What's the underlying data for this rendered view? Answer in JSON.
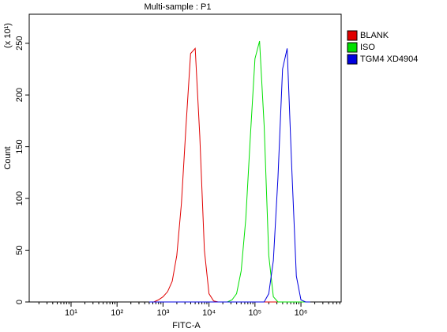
{
  "chart_data": {
    "type": "line",
    "title": "Multi-sample : P1",
    "x_label": "FITC-A",
    "y_label": "Count",
    "y_multiplier": "(x 10¹)",
    "x_scale": "log",
    "xlim": [
      1.23,
      7500000
    ],
    "xticks": [
      {
        "value": 10,
        "label": "10¹"
      },
      {
        "value": 100,
        "label": "10²"
      },
      {
        "value": 1000,
        "label": "10³"
      },
      {
        "value": 10000,
        "label": "10⁴"
      },
      {
        "value": 100000,
        "label": "10⁵"
      },
      {
        "value": 1000000,
        "label": "10⁶"
      }
    ],
    "ylim": [
      0,
      278
    ],
    "yticks": [
      0,
      50,
      100,
      150,
      200,
      250
    ],
    "legend": "outside-right",
    "x": [
      501,
      631,
      794,
      1000,
      1259,
      1585,
      1995,
      2512,
      3162,
      3981,
      5012,
      6310,
      7943,
      10000,
      12589,
      15849,
      19953,
      25119,
      31623,
      39811,
      50119,
      63096,
      79433,
      100000,
      125893,
      158489,
      199526,
      251189,
      316228,
      398107,
      501187,
      630957,
      794328,
      1000000,
      1258925,
      1584893
    ],
    "series": [
      {
        "name": "BLANK",
        "color": "#e00000",
        "values": [
          0,
          0,
          2,
          5,
          10,
          20,
          45,
          95,
          170,
          240,
          245,
          160,
          50,
          8,
          1,
          0,
          0,
          0,
          0,
          0,
          0,
          0,
          0,
          0,
          0,
          0,
          0,
          0,
          0,
          0,
          0,
          0,
          0,
          0,
          0,
          0
        ]
      },
      {
        "name": "ISO",
        "color": "#00e000",
        "values": [
          0,
          0,
          0,
          0,
          0,
          0,
          0,
          0,
          0,
          0,
          0,
          0,
          0,
          0,
          0,
          0,
          0,
          0,
          2,
          8,
          30,
          80,
          160,
          235,
          252,
          170,
          45,
          5,
          0,
          0,
          0,
          0,
          0,
          0,
          0,
          0
        ]
      },
      {
        "name": "TGM4 XD4904",
        "color": "#0000e0",
        "values": [
          0,
          0,
          0,
          0,
          0,
          0,
          0,
          0,
          0,
          0,
          0,
          0,
          0,
          0,
          0,
          0,
          0,
          0,
          0,
          0,
          0,
          0,
          0,
          0,
          0,
          0,
          8,
          40,
          120,
          225,
          245,
          130,
          25,
          2,
          0,
          0
        ]
      }
    ]
  }
}
